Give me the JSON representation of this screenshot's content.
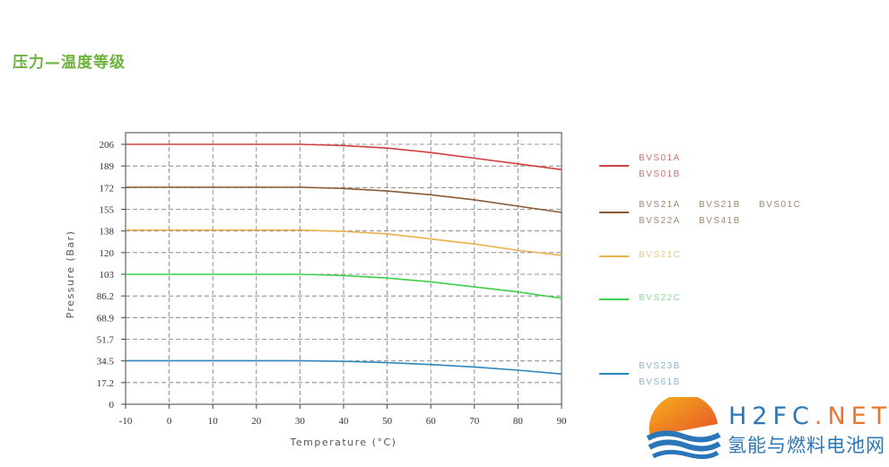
{
  "page_title": "压力—温度等级",
  "chart_data": {
    "type": "line",
    "xlabel": "Temperature (°C)",
    "ylabel": "Pressure (Bar)",
    "x_ticks": [
      "-10",
      "0",
      "10",
      "20",
      "30",
      "40",
      "50",
      "60",
      "70",
      "80",
      "90"
    ],
    "y_ticks": [
      "0",
      "17.2",
      "34.5",
      "51.7",
      "68.9",
      "86.2",
      "103",
      "120",
      "138",
      "155",
      "172",
      "189",
      "206"
    ],
    "xlim": [
      -10,
      90
    ],
    "ylim": [
      0,
      206
    ],
    "grid": true,
    "x": [
      -10,
      0,
      10,
      20,
      30,
      40,
      50,
      60,
      70,
      80,
      90
    ],
    "series": [
      {
        "name": "BVS01A / BVS01B",
        "color": "#d0403f",
        "labels": [
          "BVS01A",
          "BVS01B"
        ],
        "values": [
          206,
          206,
          206,
          206,
          206,
          205,
          203,
          199.5,
          195,
          190.5,
          186
        ]
      },
      {
        "name": "BVS21A / BVS21B / BVS01C / BVS22A / BVS41B",
        "color": "#8a5a35",
        "labels": [
          "BVS21A",
          "BVS21B",
          "BVS01C",
          "BVS22A",
          "BVS41B"
        ],
        "values": [
          172,
          172,
          172,
          172,
          172,
          171,
          169,
          166,
          162,
          157,
          152
        ]
      },
      {
        "name": "BVS21C",
        "color": "#e8b04e",
        "labels": [
          "BVS21C"
        ],
        "values": [
          138,
          138,
          138,
          138,
          138,
          137,
          135,
          131,
          127,
          122,
          118
        ]
      },
      {
        "name": "BVS22C",
        "color": "#3fcf4a",
        "labels": [
          "BVS22C"
        ],
        "values": [
          103,
          103,
          103,
          103,
          103,
          102,
          100,
          97,
          93,
          89,
          84
        ]
      },
      {
        "name": "BVS23B / BVS61B",
        "color": "#2e86b8",
        "labels": [
          "BVS23B",
          "BVS61B"
        ],
        "values": [
          34.5,
          34.5,
          34.5,
          34.5,
          34.5,
          34,
          33,
          31.5,
          29.5,
          27,
          24
        ]
      }
    ],
    "legend": "right"
  },
  "legend_text_colors": [
    "#d07070",
    "#a08a70",
    "#ecc98a",
    "#8fd89a",
    "#8ab8d0"
  ],
  "logo": {
    "name_blue": "H2FC",
    "name_orange": ".NET",
    "subtitle": "氢能与燃料电池网"
  }
}
